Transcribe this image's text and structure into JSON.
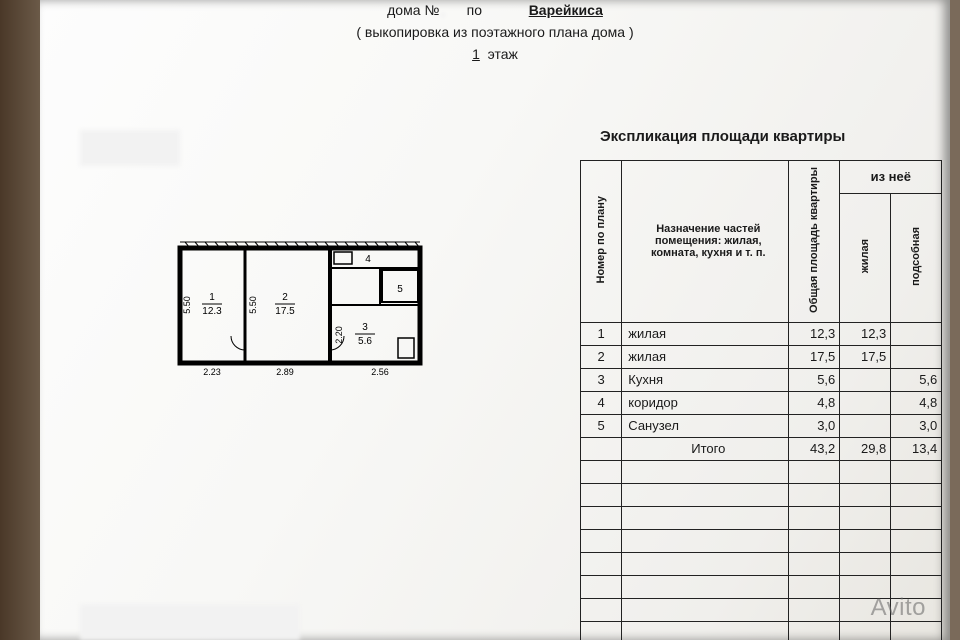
{
  "header": {
    "house_no_label": "дома №",
    "house_no_value": "   ",
    "po_label": "по",
    "street": "Варейкиса",
    "subtitle": "( выкопировка из поэтажного плана дома )",
    "floor_number": "1",
    "floor_label": "этаж"
  },
  "table": {
    "title": "Экспликация площади квартиры",
    "headers": {
      "num": "Номер по плану",
      "name": "Назначение частей помещения: жилая, комната, кухня и т. п.",
      "total": "Общая площадь квартиры",
      "of_it": "из неё",
      "living": "жилая",
      "aux": "подсобная"
    },
    "rows": [
      {
        "num": "1",
        "name": "жилая",
        "total": "12,3",
        "living": "12,3",
        "aux": ""
      },
      {
        "num": "2",
        "name": "жилая",
        "total": "17,5",
        "living": "17,5",
        "aux": ""
      },
      {
        "num": "3",
        "name": "Кухня",
        "total": "5,6",
        "living": "",
        "aux": "5,6"
      },
      {
        "num": "4",
        "name": "коридор",
        "total": "4,8",
        "living": "",
        "aux": "4,8"
      },
      {
        "num": "5",
        "name": "Санузел",
        "total": "3,0",
        "living": "",
        "aux": "3,0"
      }
    ],
    "total_row": {
      "label": "Итого",
      "total": "43,2",
      "living": "29,8",
      "aux": "13,4"
    },
    "empty_rows": 8,
    "border_color": "#222222"
  },
  "floorplan": {
    "rooms": [
      {
        "id": "1",
        "area": "12.3",
        "h": "5.50",
        "w": "2.23"
      },
      {
        "id": "2",
        "area": "17.5",
        "h": "5.50",
        "w": "2.89"
      },
      {
        "id": "3",
        "area": "5.6",
        "w2": "2.56",
        "h2": "2.20"
      },
      {
        "id": "4",
        "label": "4"
      },
      {
        "id": "5",
        "label": "5"
      }
    ],
    "wall_color": "#000000",
    "background": "#ffffff"
  },
  "watermark": "Avito",
  "colors": {
    "paper": "#f8f8f6",
    "wood": "#5a4838",
    "text": "#1a1a1a"
  }
}
